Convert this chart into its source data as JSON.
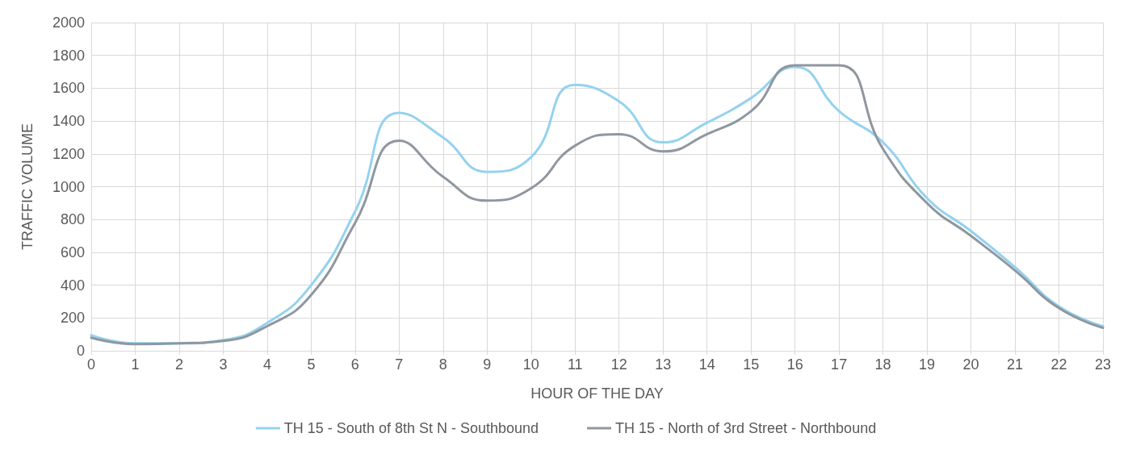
{
  "chart_data": {
    "type": "line",
    "xlabel": "HOUR OF THE DAY",
    "ylabel": "TRAFFIC VOLUME",
    "x": [
      0,
      1,
      2,
      3,
      4,
      5,
      6,
      7,
      8,
      9,
      10,
      11,
      12,
      13,
      14,
      15,
      16,
      17,
      18,
      19,
      20,
      21,
      22,
      23
    ],
    "series": [
      {
        "name": "TH 15 - South of 8th St N - Southbound",
        "color": "#94d2ef",
        "values": [
          95,
          45,
          45,
          65,
          170,
          400,
          850,
          1450,
          1300,
          1090,
          1180,
          1620,
          1520,
          1270,
          1390,
          1540,
          1730,
          1460,
          1270,
          930,
          730,
          510,
          270,
          150
        ]
      },
      {
        "name": "TH 15 - North of 3rd Street - Northbound",
        "color": "#8f979f",
        "values": [
          80,
          40,
          45,
          60,
          150,
          340,
          780,
          1280,
          1060,
          915,
          990,
          1250,
          1320,
          1215,
          1320,
          1460,
          1740,
          1740,
          1230,
          900,
          700,
          490,
          260,
          140
        ]
      }
    ],
    "xlim": [
      0,
      23
    ],
    "xticks": [
      0,
      1,
      2,
      3,
      4,
      5,
      6,
      7,
      8,
      9,
      10,
      11,
      12,
      13,
      14,
      15,
      16,
      17,
      18,
      19,
      20,
      21,
      22,
      23
    ],
    "ylim": [
      0,
      2000
    ],
    "yticks": [
      0,
      200,
      400,
      600,
      800,
      1000,
      1200,
      1400,
      1600,
      1800,
      2000
    ],
    "grid": true,
    "legend": "bottom",
    "marker": "none",
    "line_style": "solid"
  }
}
